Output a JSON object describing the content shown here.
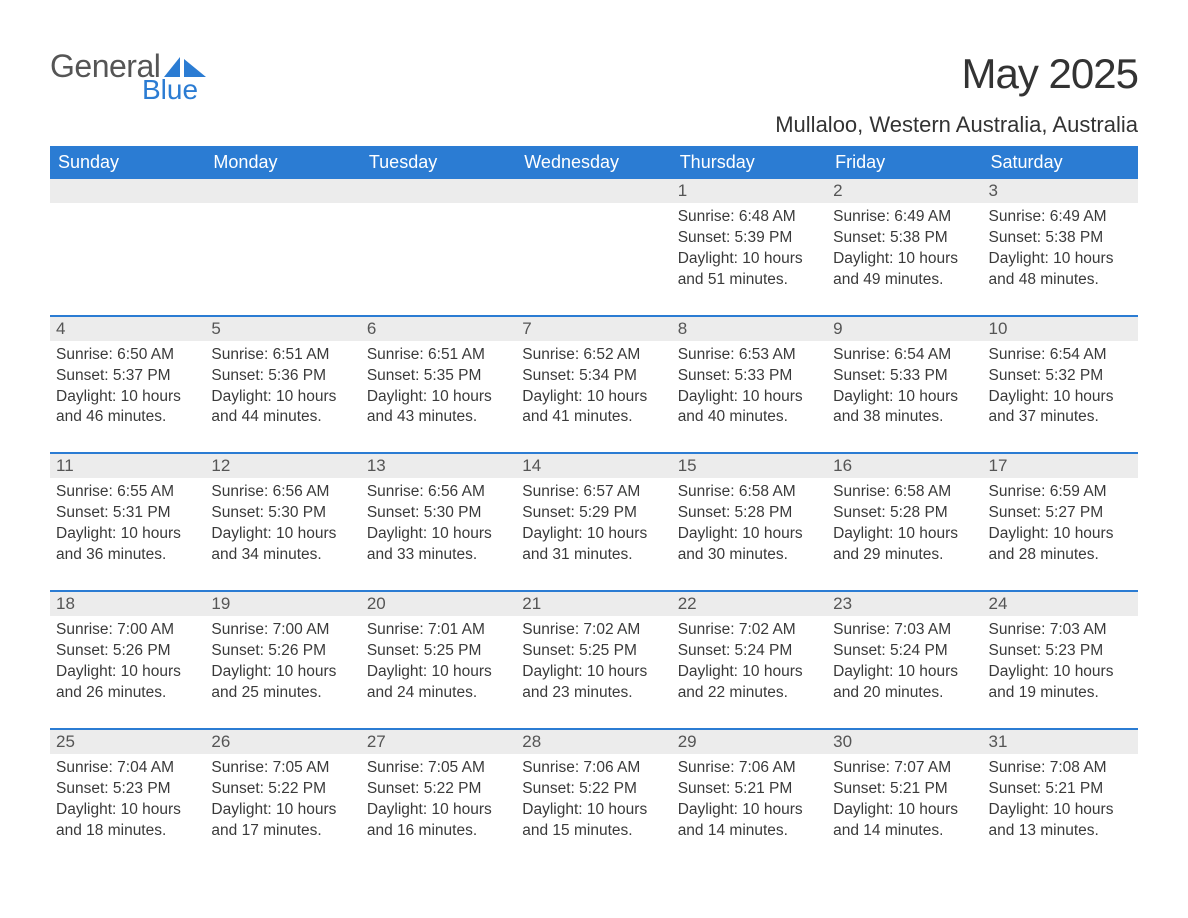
{
  "logo": {
    "general": "General",
    "blue": "Blue",
    "accent_color": "#2b7cd3"
  },
  "title": "May 2025",
  "location": "Mullaloo, Western Australia, Australia",
  "colors": {
    "header_bg": "#2b7cd3",
    "header_text": "#ffffff",
    "daterow_bg": "#ececec",
    "daterow_border": "#2b7cd3",
    "body_text": "#3a3a3a",
    "page_bg": "#ffffff"
  },
  "typography": {
    "title_fontsize": 42,
    "location_fontsize": 22,
    "dayheader_fontsize": 18,
    "date_fontsize": 17,
    "cell_fontsize": 15.5
  },
  "day_headers": [
    "Sunday",
    "Monday",
    "Tuesday",
    "Wednesday",
    "Thursday",
    "Friday",
    "Saturday"
  ],
  "weeks": [
    [
      null,
      null,
      null,
      null,
      {
        "date": "1",
        "sunrise": "6:48 AM",
        "sunset": "5:39 PM",
        "daylight": "10 hours and 51 minutes."
      },
      {
        "date": "2",
        "sunrise": "6:49 AM",
        "sunset": "5:38 PM",
        "daylight": "10 hours and 49 minutes."
      },
      {
        "date": "3",
        "sunrise": "6:49 AM",
        "sunset": "5:38 PM",
        "daylight": "10 hours and 48 minutes."
      }
    ],
    [
      {
        "date": "4",
        "sunrise": "6:50 AM",
        "sunset": "5:37 PM",
        "daylight": "10 hours and 46 minutes."
      },
      {
        "date": "5",
        "sunrise": "6:51 AM",
        "sunset": "5:36 PM",
        "daylight": "10 hours and 44 minutes."
      },
      {
        "date": "6",
        "sunrise": "6:51 AM",
        "sunset": "5:35 PM",
        "daylight": "10 hours and 43 minutes."
      },
      {
        "date": "7",
        "sunrise": "6:52 AM",
        "sunset": "5:34 PM",
        "daylight": "10 hours and 41 minutes."
      },
      {
        "date": "8",
        "sunrise": "6:53 AM",
        "sunset": "5:33 PM",
        "daylight": "10 hours and 40 minutes."
      },
      {
        "date": "9",
        "sunrise": "6:54 AM",
        "sunset": "5:33 PM",
        "daylight": "10 hours and 38 minutes."
      },
      {
        "date": "10",
        "sunrise": "6:54 AM",
        "sunset": "5:32 PM",
        "daylight": "10 hours and 37 minutes."
      }
    ],
    [
      {
        "date": "11",
        "sunrise": "6:55 AM",
        "sunset": "5:31 PM",
        "daylight": "10 hours and 36 minutes."
      },
      {
        "date": "12",
        "sunrise": "6:56 AM",
        "sunset": "5:30 PM",
        "daylight": "10 hours and 34 minutes."
      },
      {
        "date": "13",
        "sunrise": "6:56 AM",
        "sunset": "5:30 PM",
        "daylight": "10 hours and 33 minutes."
      },
      {
        "date": "14",
        "sunrise": "6:57 AM",
        "sunset": "5:29 PM",
        "daylight": "10 hours and 31 minutes."
      },
      {
        "date": "15",
        "sunrise": "6:58 AM",
        "sunset": "5:28 PM",
        "daylight": "10 hours and 30 minutes."
      },
      {
        "date": "16",
        "sunrise": "6:58 AM",
        "sunset": "5:28 PM",
        "daylight": "10 hours and 29 minutes."
      },
      {
        "date": "17",
        "sunrise": "6:59 AM",
        "sunset": "5:27 PM",
        "daylight": "10 hours and 28 minutes."
      }
    ],
    [
      {
        "date": "18",
        "sunrise": "7:00 AM",
        "sunset": "5:26 PM",
        "daylight": "10 hours and 26 minutes."
      },
      {
        "date": "19",
        "sunrise": "7:00 AM",
        "sunset": "5:26 PM",
        "daylight": "10 hours and 25 minutes."
      },
      {
        "date": "20",
        "sunrise": "7:01 AM",
        "sunset": "5:25 PM",
        "daylight": "10 hours and 24 minutes."
      },
      {
        "date": "21",
        "sunrise": "7:02 AM",
        "sunset": "5:25 PM",
        "daylight": "10 hours and 23 minutes."
      },
      {
        "date": "22",
        "sunrise": "7:02 AM",
        "sunset": "5:24 PM",
        "daylight": "10 hours and 22 minutes."
      },
      {
        "date": "23",
        "sunrise": "7:03 AM",
        "sunset": "5:24 PM",
        "daylight": "10 hours and 20 minutes."
      },
      {
        "date": "24",
        "sunrise": "7:03 AM",
        "sunset": "5:23 PM",
        "daylight": "10 hours and 19 minutes."
      }
    ],
    [
      {
        "date": "25",
        "sunrise": "7:04 AM",
        "sunset": "5:23 PM",
        "daylight": "10 hours and 18 minutes."
      },
      {
        "date": "26",
        "sunrise": "7:05 AM",
        "sunset": "5:22 PM",
        "daylight": "10 hours and 17 minutes."
      },
      {
        "date": "27",
        "sunrise": "7:05 AM",
        "sunset": "5:22 PM",
        "daylight": "10 hours and 16 minutes."
      },
      {
        "date": "28",
        "sunrise": "7:06 AM",
        "sunset": "5:22 PM",
        "daylight": "10 hours and 15 minutes."
      },
      {
        "date": "29",
        "sunrise": "7:06 AM",
        "sunset": "5:21 PM",
        "daylight": "10 hours and 14 minutes."
      },
      {
        "date": "30",
        "sunrise": "7:07 AM",
        "sunset": "5:21 PM",
        "daylight": "10 hours and 14 minutes."
      },
      {
        "date": "31",
        "sunrise": "7:08 AM",
        "sunset": "5:21 PM",
        "daylight": "10 hours and 13 minutes."
      }
    ]
  ],
  "labels": {
    "sunrise": "Sunrise: ",
    "sunset": "Sunset: ",
    "daylight": "Daylight: "
  }
}
